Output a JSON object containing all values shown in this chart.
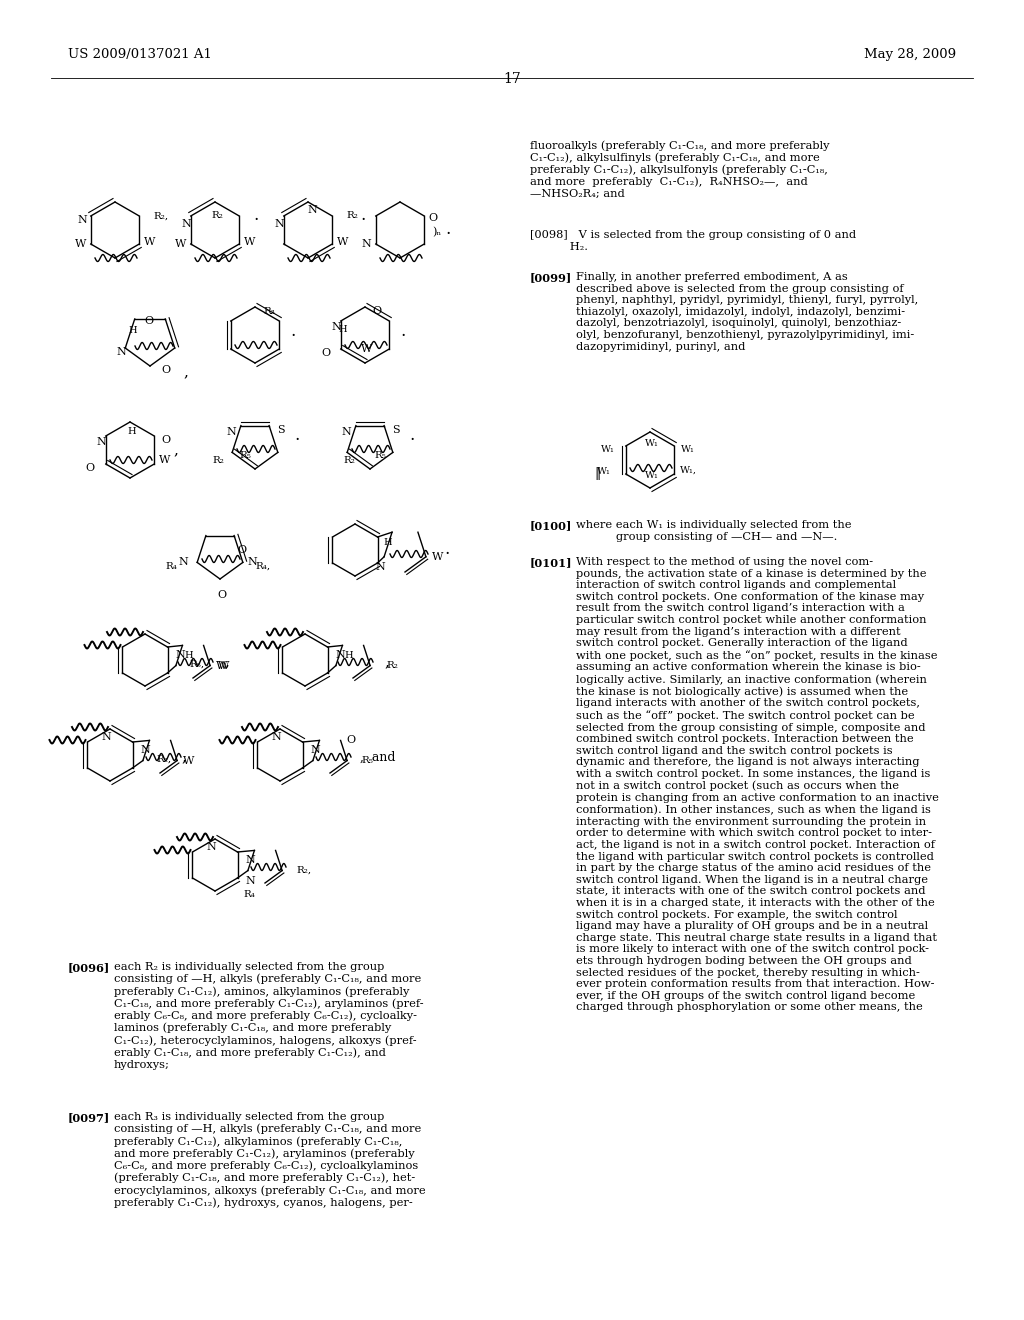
{
  "bg": "#ffffff",
  "header_left": "US 2009/0137021 A1",
  "header_right": "May 28, 2009",
  "page_number": "17",
  "right_col_para1": "fluoroalkyls (preferably C₁-C₁₈, and more preferably\nC₁-C₁₂), alkylsulfinyls (preferably C₁-C₁₈, and more\npreferably C₁-C₁₂), alkylsulfonyls (preferably C₁-C₁₈,\nand more  preferably  C₁-C₁₂),  R₄NHSO₂—,  and\n—NHSO₂R₄; and",
  "right_col_0098": "[0098]   V is selected from the group consisting of 0 and\n           H₂.",
  "right_col_0099_tag": "[0099]",
  "right_col_0099": "Finally, in another preferred embodiment, A as\ndescribed above is selected from the group consisting of\nphenyl, naphthyl, pyridyl, pyrimidyl, thienyl, furyl, pyrrolyl,\nthiazolyl, oxazolyl, imidazolyl, indolyl, indazolyl, benzimi-\ndazolyl, benzotriazolyl, isoquinolyl, quinolyl, benzothiaz-\nolyl, benzofuranyl, benzothienyl, pyrazolylpyrimidinyl, imi-\ndazopyrimidinyl, purinyl, and",
  "right_col_0100_tag": "[0100]",
  "right_col_0100": "where each W₁ is individually selected from the\n           group consisting of —CH— and —N—.",
  "right_col_0101_tag": "[0101]",
  "right_col_0101": "With respect to the method of using the novel com-\npounds, the activation state of a kinase is determined by the\ninteraction of switch control ligands and complemental\nswitch control pockets. One conformation of the kinase may\nresult from the switch control ligand’s interaction with a\nparticular switch control pocket while another conformation\nmay result from the ligand’s interaction with a different\nswitch control pocket. Generally interaction of the ligand\nwith one pocket, such as the “on” pocket, results in the kinase\nassuming an active conformation wherein the kinase is bio-\nlogically active. Similarly, an inactive conformation (wherein\nthe kinase is not biologically active) is assumed when the\nligand interacts with another of the switch control pockets,\nsuch as the “off” pocket. The switch control pocket can be\nselected from the group consisting of simple, composite and\ncombined switch control pockets. Interaction between the\nswitch control ligand and the switch control pockets is\ndynamic and therefore, the ligand is not always interacting\nwith a switch control pocket. In some instances, the ligand is\nnot in a switch control pocket (such as occurs when the\nprotein is changing from an active conformation to an inactive\nconformation). In other instances, such as when the ligand is\ninteracting with the environment surrounding the protein in\norder to determine with which switch control pocket to inter-\nact, the ligand is not in a switch control pocket. Interaction of\nthe ligand with particular switch control pockets is controlled\nin part by the charge status of the amino acid residues of the\nswitch control ligand. When the ligand is in a neutral charge\nstate, it interacts with one of the switch control pockets and\nwhen it is in a charged state, it interacts with the other of the\nswitch control pockets. For example, the switch control\nligand may have a plurality of OH groups and be in a neutral\ncharge state. This neutral charge state results in a ligand that\nis more likely to interact with one of the switch control pock-\nets through hydrogen boding between the OH groups and\nselected residues of the pocket, thereby resulting in which-\never protein conformation results from that interaction. How-\never, if the OH groups of the switch control ligand become\ncharged through phosphorylation or some other means, the",
  "left_col_0096_tag": "[0096]",
  "left_col_0096": "each R₂ is individually selected from the group\nconsisting of —H, alkyls (preferably C₁-C₁₈, and more\npreferably C₁-C₁₂), aminos, alkylaminos (preferably\nC₁-C₁₈, and more preferably C₁-C₁₂), arylaminos (pref-\nerably C₆-C₈, and more preferably C₆-C₁₂), cycloalky-\nlaminos (preferably C₁-C₁₈, and more preferably\nC₁-C₁₂), heterocyclylaminos, halogens, alkoxys (pref-\nerably C₁-C₁₈, and more preferably C₁-C₁₂), and\nhydroxys;",
  "left_col_0097_tag": "[0097]",
  "left_col_0097": "each R₃ is individually selected from the group\nconsisting of —H, alkyls (preferably C₁-C₁₈, and more\npreferably C₁-C₁₂), alkylaminos (preferably C₁-C₁₈,\nand more preferably C₁-C₁₂), arylaminos (preferably\nC₆-C₈, and more preferably C₆-C₁₂), cycloalkylaminos\n(preferably C₁-C₁₈, and more preferably C₁-C₁₂), het-\nerocyclylaminos, alkoxys (preferably C₁-C₁₈, and more\npreferably C₁-C₁₂), hydroxys, cyanos, halogens, per-"
}
